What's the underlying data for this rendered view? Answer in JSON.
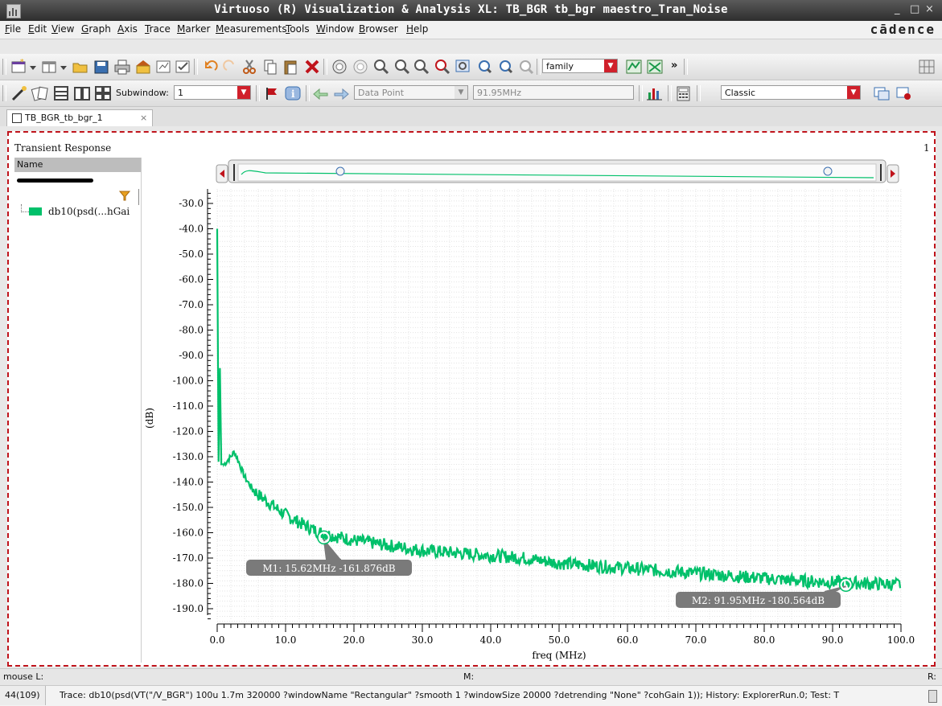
{
  "window": {
    "title": "Virtuoso (R) Visualization & Analysis XL: TB_BGR tb_bgr maestro_Tran_Noise",
    "minimize": "_",
    "maximize": "□",
    "close": "×"
  },
  "menubar": {
    "items": [
      "File",
      "Edit",
      "View",
      "Graph",
      "Axis",
      "Trace",
      "Marker",
      "Measurements",
      "Tools",
      "Window",
      "Browser",
      "Help"
    ],
    "brand": "cādence"
  },
  "toolbar": {
    "family_combo": "family",
    "more": "»"
  },
  "toolbar2": {
    "subwindow_label": "Subwindow:",
    "subwindow_value": "1",
    "datapoint_combo": "Data Point",
    "freq_field": "91.95MHz",
    "style_combo": "Classic"
  },
  "tab": {
    "label": "TB_BGR_tb_bgr_1",
    "close": "×"
  },
  "plot": {
    "title": "Transient Response",
    "subwindow_number": "1",
    "ylabel": "(dB)",
    "xlabel": "freq (MHz)"
  },
  "sidebar": {
    "header": "Name",
    "trace_label": "db10(psd(...hGai"
  },
  "status": {
    "mouse_l": "mouse L:",
    "mouse_m": "M:",
    "mouse_r": "R:"
  },
  "command": {
    "count": "44(109)",
    "text": "Trace: db10(psd(VT(\"/V_BGR\") 100u 1.7m 320000 ?windowName \"Rectangular\" ?smooth 1 ?windowSize 20000 ?detrending \"None\" ?cohGain 1)); History: ExplorerRun.0; Test: T"
  },
  "colors": {
    "trace": "#00c06a",
    "accent": "#d0202b",
    "marker_label_bg": "#7a7a7a"
  },
  "chart_data": {
    "type": "line",
    "title": "Transient Response",
    "xlabel": "freq (MHz)",
    "ylabel": "(dB)",
    "xlim": [
      0,
      100
    ],
    "ylim": [
      -195,
      -25
    ],
    "xticks": [
      "0.0",
      "10.0",
      "20.0",
      "30.0",
      "40.0",
      "50.0",
      "60.0",
      "70.0",
      "80.0",
      "90.0",
      "100.0"
    ],
    "yticks": [
      "-30.0",
      "-40.0",
      "-50.0",
      "-60.0",
      "-70.0",
      "-80.0",
      "-90.0",
      "-100.0",
      "-110.0",
      "-120.0",
      "-130.0",
      "-140.0",
      "-150.0",
      "-160.0",
      "-170.0",
      "-180.0",
      "-190.0"
    ],
    "grid": true,
    "series": [
      {
        "name": "db10(psd(...hGai",
        "x": [
          0,
          0.2,
          0.4,
          0.6,
          1,
          2,
          2.5,
          3,
          4,
          5,
          6,
          8,
          10,
          12,
          15,
          20,
          25,
          30,
          35,
          40,
          45,
          50,
          55,
          60,
          65,
          70,
          75,
          80,
          85,
          90,
          95,
          100
        ],
        "y": [
          -40,
          -132,
          -95,
          -133,
          -133,
          -130,
          -128,
          -131,
          -138,
          -142,
          -145,
          -149,
          -153,
          -156,
          -160,
          -163,
          -165,
          -167,
          -168,
          -169,
          -170,
          -172,
          -173,
          -174,
          -175,
          -176,
          -177,
          -178,
          -179,
          -179.5,
          -180,
          -180.5
        ]
      }
    ],
    "markers": [
      {
        "name": "M1",
        "x": 15.62,
        "y": -161.876,
        "label": "M1: 15.62MHz -161.876dB"
      },
      {
        "name": "M2",
        "x": 91.95,
        "y": -180.564,
        "label": "M2: 91.95MHz -180.564dB"
      }
    ]
  }
}
